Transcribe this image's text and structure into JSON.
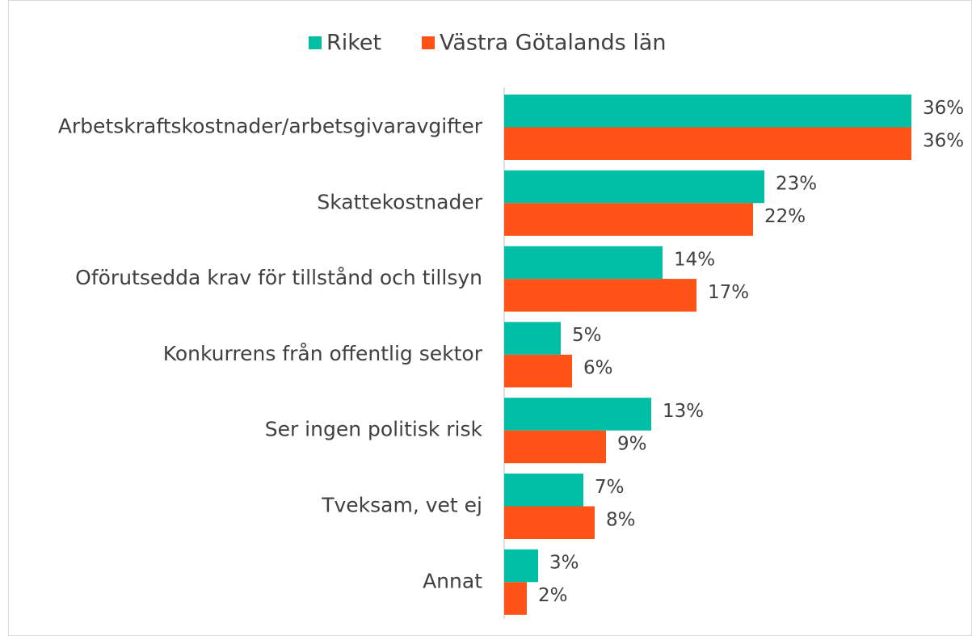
{
  "chart_data": {
    "type": "barh",
    "categories": [
      "Arbetskraftskostnader/arbetsgivaravgifter",
      "Skattekostnader",
      "Oförutsedda krav för tillstånd och tillsyn",
      "Konkurrens från offentlig sektor",
      "Ser ingen politisk risk",
      "Tveksam, vet ej",
      "Annat"
    ],
    "series": [
      {
        "name": "Riket",
        "color": "#00bfa5",
        "values": [
          36,
          23,
          14,
          5,
          13,
          7,
          3
        ],
        "value_labels": [
          "36%",
          "23%",
          "14%",
          "5%",
          "13%",
          "7%",
          "3%"
        ]
      },
      {
        "name": "Västra Götalands län",
        "color": "#ff5216",
        "values": [
          36,
          22,
          17,
          6,
          9,
          8,
          2
        ],
        "value_labels": [
          "36%",
          "22%",
          "17%",
          "6%",
          "9%",
          "8%",
          "2%"
        ]
      }
    ],
    "legend": "top"
  }
}
